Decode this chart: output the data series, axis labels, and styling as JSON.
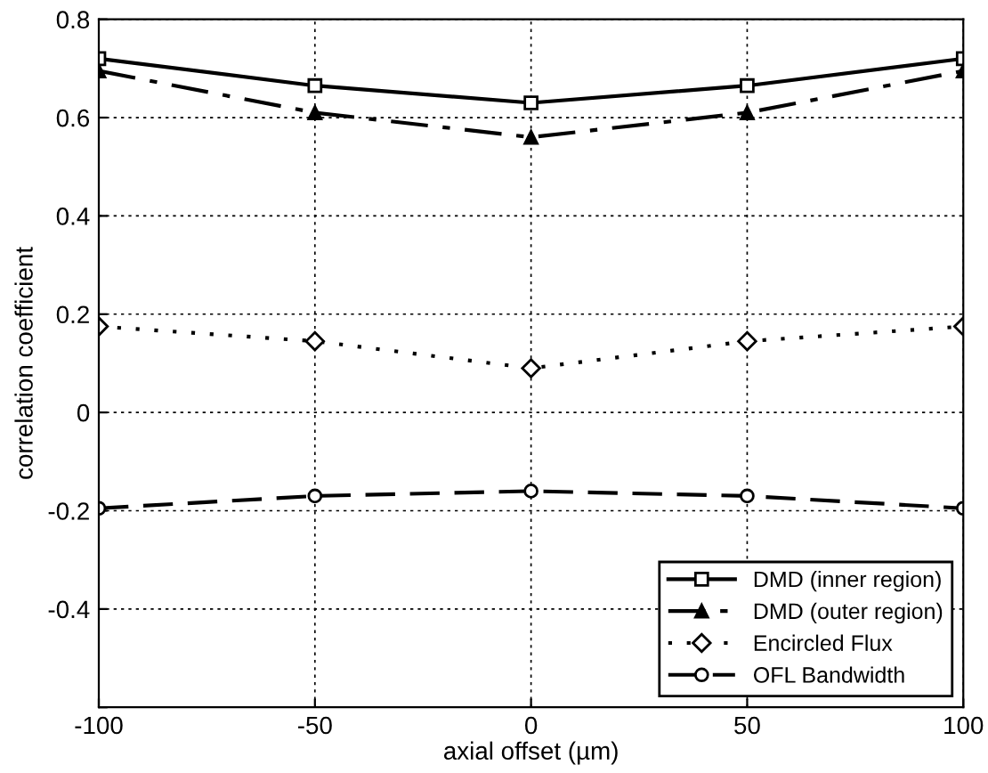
{
  "chart_data": {
    "type": "line",
    "xlabel": "axial offset (µm)",
    "ylabel": "correlation coefficient",
    "x": [
      -100,
      -50,
      0,
      50,
      100
    ],
    "series": [
      {
        "name": "DMD (inner region)",
        "color": "#000000",
        "marker": "square",
        "line_style": "solid",
        "values": [
          0.72,
          0.665,
          0.63,
          0.665,
          0.72
        ]
      },
      {
        "name": "DMD (outer region)",
        "color": "#000000",
        "marker": "triangle",
        "line_style": "dashdot",
        "values": [
          0.695,
          0.61,
          0.56,
          0.61,
          0.695
        ]
      },
      {
        "name": "Encircled Flux",
        "color": "#000000",
        "marker": "diamond",
        "line_style": "dotted",
        "values": [
          0.175,
          0.145,
          0.09,
          0.145,
          0.175
        ]
      },
      {
        "name": "OFL Bandwidth",
        "color": "#000000",
        "marker": "circle",
        "line_style": "dashed",
        "values": [
          -0.195,
          -0.17,
          -0.16,
          -0.17,
          -0.195
        ]
      }
    ],
    "xlim": [
      -100,
      100
    ],
    "xticks": [
      -100,
      -50,
      0,
      50,
      100
    ],
    "ylim": [
      -0.6,
      0.8
    ],
    "yticks": [
      {
        "value": -0.6,
        "label": null
      },
      -0.4,
      -0.2,
      0,
      0.2,
      0.4,
      0.6,
      0.8
    ],
    "grid": true,
    "legend": "bottom right"
  }
}
